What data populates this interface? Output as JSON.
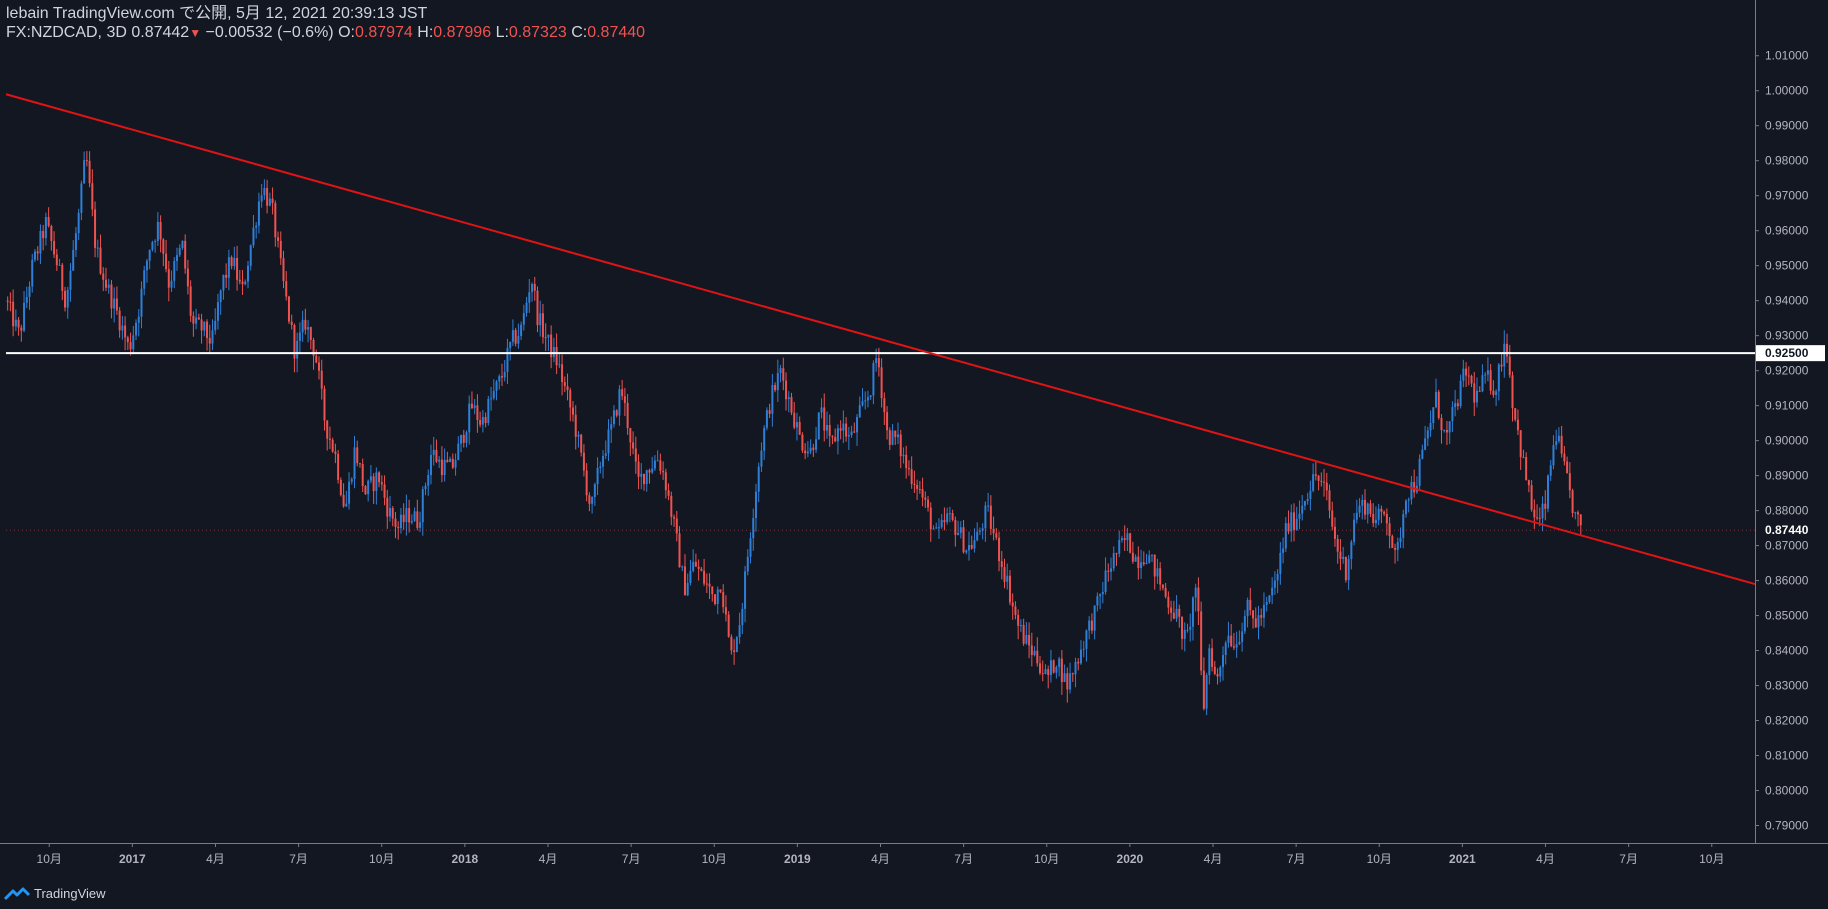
{
  "header": {
    "line1": "lebain TradingView.com で公開, 5月 12, 2021 20:39:13 JST",
    "symbol": "FX:NZDCAD, 3D 0.87442",
    "arrow": "▼",
    "change": " −0.00532 (−0.6%)",
    "o_label": "O:",
    "o_value": "0.87974",
    "h_label": "H:",
    "h_value": "0.87996",
    "l_label": "L:",
    "l_value": "0.87323",
    "c_label": "C:",
    "c_value": "0.87440"
  },
  "footer": {
    "brand": "TradingView"
  },
  "colors": {
    "background": "#131722",
    "up": "#2e7fd6",
    "down": "#ef5350",
    "trendline": "#e01414",
    "hline": "#ffffff",
    "axis_text": "#b2b5be"
  },
  "chart_data": {
    "type": "candlestick",
    "symbol": "FX:NZDCAD",
    "interval": "3D",
    "ylim": [
      0.785,
      1.0145
    ],
    "y_ticks": [
      "0.79000",
      "0.80000",
      "0.81000",
      "0.82000",
      "0.83000",
      "0.84000",
      "0.85000",
      "0.86000",
      "0.87000",
      "0.88000",
      "0.89000",
      "0.90000",
      "0.91000",
      "0.92000",
      "0.93000",
      "0.94000",
      "0.95000",
      "0.96000",
      "0.97000",
      "0.98000",
      "0.99000",
      "1.00000",
      "1.01000"
    ],
    "x_range": [
      2016.62,
      2021.88
    ],
    "x_ticks": [
      {
        "t": 2016.75,
        "label": "10月"
      },
      {
        "t": 2017.0,
        "label": "2017"
      },
      {
        "t": 2017.25,
        "label": "4月"
      },
      {
        "t": 2017.5,
        "label": "7月"
      },
      {
        "t": 2017.75,
        "label": "10月"
      },
      {
        "t": 2018.0,
        "label": "2018"
      },
      {
        "t": 2018.25,
        "label": "4月"
      },
      {
        "t": 2018.5,
        "label": "7月"
      },
      {
        "t": 2018.75,
        "label": "10月"
      },
      {
        "t": 2019.0,
        "label": "2019"
      },
      {
        "t": 2019.25,
        "label": "4月"
      },
      {
        "t": 2019.5,
        "label": "7月"
      },
      {
        "t": 2019.75,
        "label": "10月"
      },
      {
        "t": 2020.0,
        "label": "2020"
      },
      {
        "t": 2020.25,
        "label": "4月"
      },
      {
        "t": 2020.5,
        "label": "7月"
      },
      {
        "t": 2020.75,
        "label": "10月"
      },
      {
        "t": 2021.0,
        "label": "2021"
      },
      {
        "t": 2021.25,
        "label": "4月"
      },
      {
        "t": 2021.5,
        "label": "7月"
      },
      {
        "t": 2021.75,
        "label": "10月"
      }
    ],
    "candles_start": 2016.625,
    "candles_end": 2021.36,
    "close_path": [
      [
        2016.62,
        0.94
      ],
      [
        2016.66,
        0.93
      ],
      [
        2016.7,
        0.95
      ],
      [
        2016.74,
        0.962
      ],
      [
        2016.77,
        0.952
      ],
      [
        2016.8,
        0.94
      ],
      [
        2016.84,
        0.965
      ],
      [
        2016.86,
        0.982
      ],
      [
        2016.89,
        0.955
      ],
      [
        2016.92,
        0.945
      ],
      [
        2016.96,
        0.935
      ],
      [
        2016.99,
        0.926
      ],
      [
        2017.02,
        0.938
      ],
      [
        2017.05,
        0.955
      ],
      [
        2017.08,
        0.962
      ],
      [
        2017.11,
        0.945
      ],
      [
        2017.15,
        0.956
      ],
      [
        2017.18,
        0.933
      ],
      [
        2017.21,
        0.932
      ],
      [
        2017.24,
        0.928
      ],
      [
        2017.27,
        0.945
      ],
      [
        2017.3,
        0.952
      ],
      [
        2017.33,
        0.942
      ],
      [
        2017.36,
        0.958
      ],
      [
        2017.39,
        0.973
      ],
      [
        2017.42,
        0.966
      ],
      [
        2017.45,
        0.947
      ],
      [
        2017.49,
        0.925
      ],
      [
        2017.52,
        0.934
      ],
      [
        2017.55,
        0.925
      ],
      [
        2017.58,
        0.905
      ],
      [
        2017.61,
        0.896
      ],
      [
        2017.64,
        0.88
      ],
      [
        2017.67,
        0.898
      ],
      [
        2017.7,
        0.885
      ],
      [
        2017.74,
        0.89
      ],
      [
        2017.77,
        0.88
      ],
      [
        2017.8,
        0.875
      ],
      [
        2017.83,
        0.879
      ],
      [
        2017.86,
        0.877
      ],
      [
        2017.9,
        0.897
      ],
      [
        2017.93,
        0.893
      ],
      [
        2017.96,
        0.892
      ],
      [
        2017.99,
        0.9
      ],
      [
        2018.02,
        0.91
      ],
      [
        2018.05,
        0.905
      ],
      [
        2018.08,
        0.912
      ],
      [
        2018.11,
        0.918
      ],
      [
        2018.14,
        0.928
      ],
      [
        2018.17,
        0.932
      ],
      [
        2018.2,
        0.947
      ],
      [
        2018.22,
        0.935
      ],
      [
        2018.25,
        0.928
      ],
      [
        2018.28,
        0.922
      ],
      [
        2018.3,
        0.915
      ],
      [
        2018.33,
        0.905
      ],
      [
        2018.36,
        0.89
      ],
      [
        2018.38,
        0.88
      ],
      [
        2018.41,
        0.895
      ],
      [
        2018.44,
        0.903
      ],
      [
        2018.47,
        0.915
      ],
      [
        2018.5,
        0.9
      ],
      [
        2018.52,
        0.888
      ],
      [
        2018.55,
        0.892
      ],
      [
        2018.58,
        0.895
      ],
      [
        2018.6,
        0.89
      ],
      [
        2018.63,
        0.875
      ],
      [
        2018.66,
        0.858
      ],
      [
        2018.69,
        0.865
      ],
      [
        2018.72,
        0.86
      ],
      [
        2018.75,
        0.855
      ],
      [
        2018.77,
        0.86
      ],
      [
        2018.8,
        0.838
      ],
      [
        2018.83,
        0.85
      ],
      [
        2018.86,
        0.875
      ],
      [
        2018.89,
        0.898
      ],
      [
        2018.92,
        0.912
      ],
      [
        2018.95,
        0.92
      ],
      [
        2018.98,
        0.91
      ],
      [
        2019.01,
        0.9
      ],
      [
        2019.04,
        0.897
      ],
      [
        2019.07,
        0.908
      ],
      [
        2019.1,
        0.898
      ],
      [
        2019.13,
        0.905
      ],
      [
        2019.16,
        0.9
      ],
      [
        2019.19,
        0.908
      ],
      [
        2019.22,
        0.915
      ],
      [
        2019.24,
        0.925
      ],
      [
        2019.27,
        0.902
      ],
      [
        2019.3,
        0.9
      ],
      [
        2019.33,
        0.892
      ],
      [
        2019.36,
        0.888
      ],
      [
        2019.39,
        0.88
      ],
      [
        2019.42,
        0.872
      ],
      [
        2019.45,
        0.878
      ],
      [
        2019.48,
        0.875
      ],
      [
        2019.51,
        0.869
      ],
      [
        2019.54,
        0.872
      ],
      [
        2019.57,
        0.88
      ],
      [
        2019.6,
        0.87
      ],
      [
        2019.63,
        0.86
      ],
      [
        2019.66,
        0.848
      ],
      [
        2019.69,
        0.842
      ],
      [
        2019.72,
        0.838
      ],
      [
        2019.75,
        0.832
      ],
      [
        2019.78,
        0.838
      ],
      [
        2019.81,
        0.83
      ],
      [
        2019.84,
        0.837
      ],
      [
        2019.87,
        0.845
      ],
      [
        2019.9,
        0.852
      ],
      [
        2019.93,
        0.862
      ],
      [
        2019.96,
        0.868
      ],
      [
        2019.99,
        0.872
      ],
      [
        2020.02,
        0.866
      ],
      [
        2020.05,
        0.868
      ],
      [
        2020.08,
        0.862
      ],
      [
        2020.11,
        0.855
      ],
      [
        2020.14,
        0.85
      ],
      [
        2020.17,
        0.842
      ],
      [
        2020.2,
        0.86
      ],
      [
        2020.22,
        0.822
      ],
      [
        2020.24,
        0.842
      ],
      [
        2020.26,
        0.83
      ],
      [
        2020.29,
        0.845
      ],
      [
        2020.32,
        0.842
      ],
      [
        2020.35,
        0.852
      ],
      [
        2020.38,
        0.848
      ],
      [
        2020.41,
        0.852
      ],
      [
        2020.44,
        0.86
      ],
      [
        2020.47,
        0.875
      ],
      [
        2020.5,
        0.878
      ],
      [
        2020.53,
        0.885
      ],
      [
        2020.56,
        0.89
      ],
      [
        2020.59,
        0.885
      ],
      [
        2020.62,
        0.87
      ],
      [
        2020.65,
        0.863
      ],
      [
        2020.68,
        0.88
      ],
      [
        2020.71,
        0.882
      ],
      [
        2020.74,
        0.877
      ],
      [
        2020.77,
        0.88
      ],
      [
        2020.8,
        0.865
      ],
      [
        2020.83,
        0.885
      ],
      [
        2020.86,
        0.888
      ],
      [
        2020.89,
        0.9
      ],
      [
        2020.92,
        0.912
      ],
      [
        2020.95,
        0.9
      ],
      [
        2020.98,
        0.91
      ],
      [
        2021.01,
        0.92
      ],
      [
        2021.04,
        0.912
      ],
      [
        2021.07,
        0.918
      ],
      [
        2021.1,
        0.915
      ],
      [
        2021.13,
        0.93
      ],
      [
        2021.15,
        0.912
      ],
      [
        2021.18,
        0.895
      ],
      [
        2021.21,
        0.88
      ],
      [
        2021.23,
        0.876
      ],
      [
        2021.25,
        0.882
      ],
      [
        2021.28,
        0.903
      ],
      [
        2021.31,
        0.89
      ],
      [
        2021.34,
        0.878
      ],
      [
        2021.36,
        0.8744
      ]
    ],
    "trendline": {
      "start": [
        2016.62,
        0.999
      ],
      "end": [
        2021.88,
        0.859
      ]
    },
    "horizontal_line": {
      "value": 0.925,
      "label": "0.92500"
    },
    "last_price": {
      "value": 0.8744,
      "label": "0.87440"
    }
  }
}
